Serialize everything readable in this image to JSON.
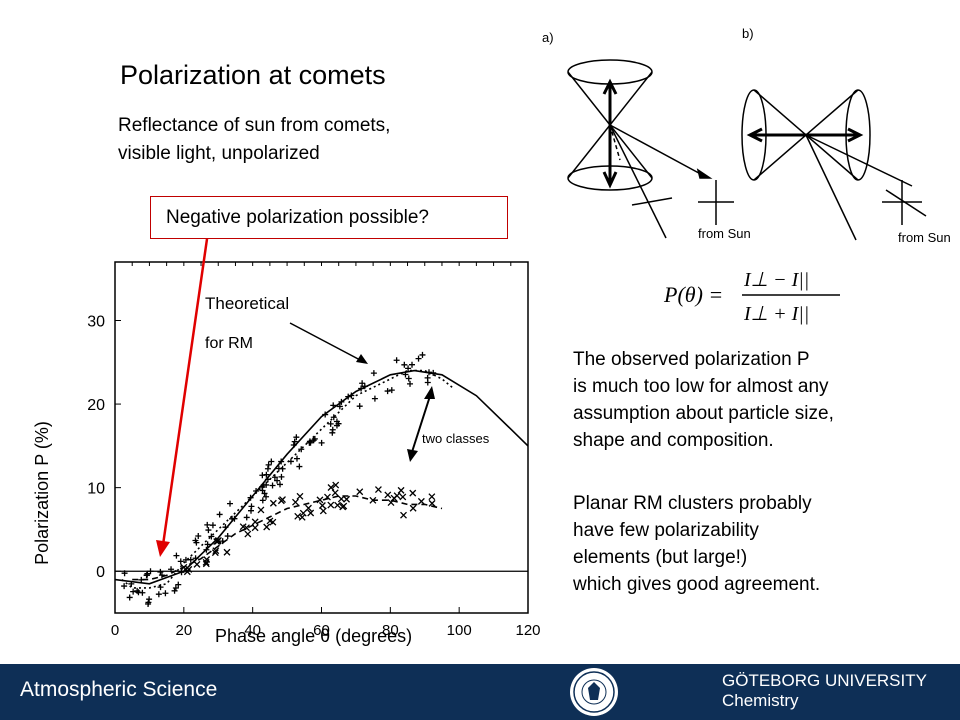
{
  "slide": {
    "title": "Polarization at comets",
    "subtitle_lines": [
      "Reflectance of sun from comets,",
      "visible light, unpolarized"
    ],
    "callout": "Negative polarization possible?",
    "observation_lines": [
      "The observed polarization P",
      "is much too low for almost any",
      "assumption about particle size,",
      "shape and composition."
    ],
    "rm_lines": [
      "Planar RM clusters probably",
      "have few polarizability",
      "elements (but large!)",
      "which gives good agreement."
    ]
  },
  "diagram": {
    "label_a": "a)",
    "label_b": "b)",
    "sun_a": "from Sun",
    "sun_b": "from Sun"
  },
  "formula": {
    "lhs": "P(θ) =",
    "num": "I⊥ − I||",
    "den": "I⊥ + I||"
  },
  "chart_data": {
    "type": "scatter",
    "xlabel": "Phase angle θ (degrees)",
    "ylabel": "Polarization P (%)",
    "xlim": [
      0,
      120
    ],
    "ylim": [
      -5,
      37
    ],
    "xticks": [
      0,
      20,
      40,
      60,
      80,
      100,
      120
    ],
    "yticks": [
      0,
      10,
      20,
      30
    ],
    "annotations": [
      "Theoretical",
      "for RM",
      "two classes"
    ],
    "series": [
      {
        "values": [
          [
            0,
            -1
          ],
          [
            10,
            -1.5
          ],
          [
            20,
            0
          ],
          [
            30,
            4
          ],
          [
            40,
            9
          ],
          [
            50,
            14
          ],
          [
            60,
            18.5
          ],
          [
            70,
            21.5
          ],
          [
            80,
            23.5
          ],
          [
            87,
            24
          ],
          [
            95,
            23.5
          ],
          [
            105,
            21
          ],
          [
            115,
            17
          ],
          [
            120,
            15
          ]
        ]
      },
      {
        "values": [
          [
            2,
            -1
          ],
          [
            5,
            -2
          ],
          [
            10,
            -2
          ],
          [
            15,
            -1.5
          ],
          [
            20,
            1
          ],
          [
            25,
            3
          ],
          [
            30,
            5
          ],
          [
            35,
            7
          ],
          [
            40,
            9
          ],
          [
            45,
            11
          ],
          [
            50,
            13
          ],
          [
            55,
            15
          ],
          [
            60,
            17
          ],
          [
            65,
            19
          ],
          [
            70,
            21
          ],
          [
            75,
            22
          ],
          [
            80,
            23
          ],
          [
            85,
            24
          ],
          [
            90,
            24
          ],
          [
            95,
            23
          ],
          [
            98,
            22
          ]
        ]
      },
      {
        "values": [
          [
            5,
            -1
          ],
          [
            10,
            -1
          ],
          [
            15,
            -0.5
          ],
          [
            20,
            0.5
          ],
          [
            25,
            1.5
          ],
          [
            30,
            3
          ],
          [
            35,
            4.5
          ],
          [
            40,
            5.5
          ],
          [
            45,
            6.5
          ],
          [
            50,
            7.5
          ],
          [
            55,
            8
          ],
          [
            60,
            8.5
          ],
          [
            65,
            9
          ],
          [
            70,
            9
          ],
          [
            75,
            8.5
          ],
          [
            80,
            8.5
          ],
          [
            85,
            8
          ],
          [
            90,
            8
          ],
          [
            95,
            7.5
          ]
        ]
      }
    ]
  },
  "footer": {
    "left": "Atmospheric Science",
    "university": "GÖTEBORG UNIVERSITY",
    "department": "Chemistry"
  }
}
